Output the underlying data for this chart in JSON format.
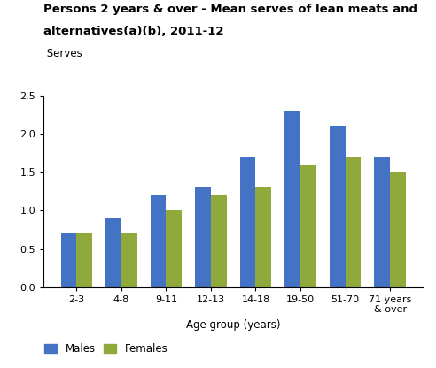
{
  "title_line1": "Persons 2 years & over - Mean serves of lean meats and",
  "title_line2": "alternatives(a)(b), 2011-12",
  "serves_label": " Serves",
  "xlabel": "Age group (years)",
  "categories": [
    "2-3",
    "4-8",
    "9-11",
    "12-13",
    "14-18",
    "19-50",
    "51-70",
    "71 years\n& over"
  ],
  "males": [
    0.7,
    0.9,
    1.2,
    1.3,
    1.7,
    2.3,
    2.1,
    1.7
  ],
  "females": [
    0.7,
    0.7,
    1.0,
    1.2,
    1.3,
    1.6,
    1.7,
    1.5
  ],
  "male_color": "#4472C4",
  "female_color": "#8faa3a",
  "ylim": [
    0,
    2.5
  ],
  "yticks": [
    0.0,
    0.5,
    1.0,
    1.5,
    2.0,
    2.5
  ],
  "legend_labels": [
    "Males",
    "Females"
  ],
  "bar_width": 0.35,
  "title_fontsize": 9.5,
  "serves_fontsize": 8.5,
  "axis_label_fontsize": 8.5,
  "tick_fontsize": 8,
  "legend_fontsize": 8.5,
  "background_color": "#ffffff"
}
